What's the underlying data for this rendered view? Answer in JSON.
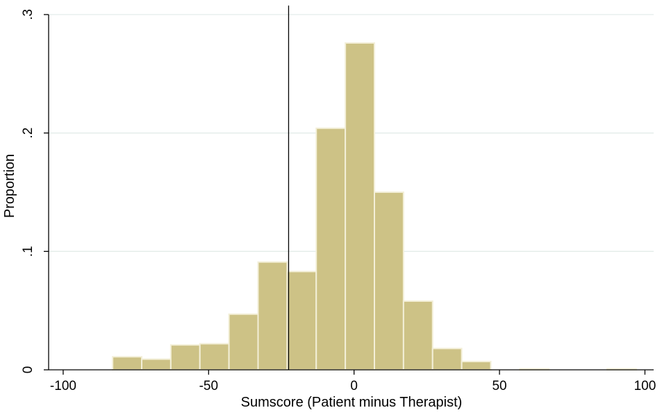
{
  "chart_data": {
    "type": "bar",
    "ylabel": "Proportion",
    "xlabel": "Sumscore (Patient minus Therapist)",
    "xlim": [
      -105,
      103
    ],
    "ylim": [
      0,
      0.3
    ],
    "x_ticks": [
      {
        "value": -100,
        "label": "-100"
      },
      {
        "value": -50,
        "label": "-50"
      },
      {
        "value": 0,
        "label": "0"
      },
      {
        "value": 50,
        "label": "50"
      },
      {
        "value": 100,
        "label": "100"
      }
    ],
    "y_ticks": [
      {
        "value": 0,
        "label": "0"
      },
      {
        "value": 0.1,
        "label": ".1"
      },
      {
        "value": 0.2,
        "label": ".2"
      },
      {
        "value": 0.3,
        "label": ".3"
      }
    ],
    "grid": true,
    "bin_width": 10,
    "bins": [
      {
        "start": -83,
        "value": 0.011
      },
      {
        "start": -73,
        "value": 0.009
      },
      {
        "start": -63,
        "value": 0.021
      },
      {
        "start": -53,
        "value": 0.022
      },
      {
        "start": -43,
        "value": 0.047
      },
      {
        "start": -33,
        "value": 0.091
      },
      {
        "start": -23,
        "value": 0.083
      },
      {
        "start": -13,
        "value": 0.204
      },
      {
        "start": -3,
        "value": 0.276
      },
      {
        "start": 7,
        "value": 0.15
      },
      {
        "start": 17,
        "value": 0.058
      },
      {
        "start": 27,
        "value": 0.018
      },
      {
        "start": 37,
        "value": 0.007
      },
      {
        "start": 57,
        "value": 0.0008
      },
      {
        "start": 87,
        "value": 0.0008
      }
    ],
    "reference_line_x": -22.5
  }
}
